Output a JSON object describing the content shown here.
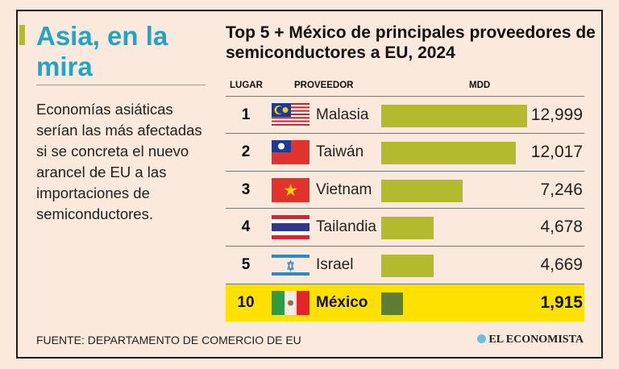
{
  "headline": "Asia, en la mira",
  "description": "Economías asiáticas serían las más afectadas si se concreta el nuevo arancel de EU a las importaciones de semiconductores.",
  "source": "FUENTE: DEPARTAMENTO DE COMERCIO DE EU",
  "logo": "EL ECONOMISTA",
  "colors": {
    "bar": "#b3ba2e",
    "highlight_bar": "#5b7d35",
    "highlight_row": "#ffe100",
    "title": "#1ea6c9"
  },
  "chart_data": {
    "type": "bar",
    "title": "Top 5 + México de principales proveedores de semiconductores a EU, 2024",
    "headers": [
      "LUGAR",
      "PROVEEDOR",
      "MDD"
    ],
    "categories": [
      "Malasia",
      "Taiwán",
      "Vietnam",
      "Tailandia",
      "Israel",
      "México"
    ],
    "ranks": [
      "1",
      "2",
      "3",
      "4",
      "5",
      "10"
    ],
    "values": [
      12999,
      12017,
      7246,
      4678,
      4669,
      1915
    ],
    "value_labels": [
      "12,999",
      "12,017",
      "7,246",
      "4,678",
      "4,669",
      "1,915"
    ],
    "flags": [
      "malaysia-flag",
      "taiwan-flag",
      "vietnam-flag",
      "thailand-flag",
      "israel-flag",
      "mexico-flag"
    ],
    "xlim": [
      0,
      12999
    ],
    "highlight": "México"
  }
}
